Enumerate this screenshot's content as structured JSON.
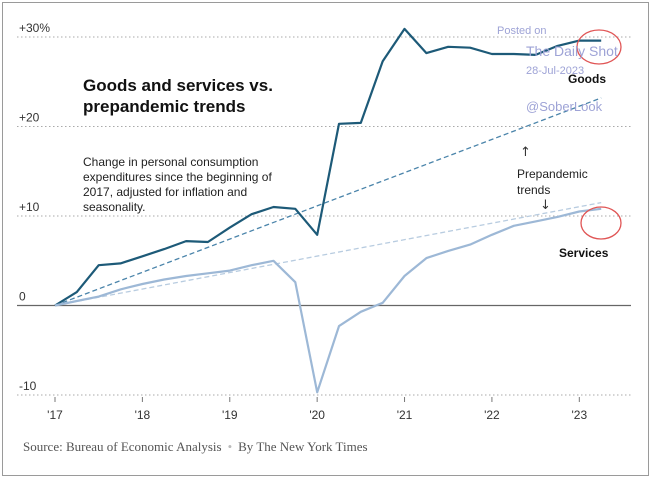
{
  "chart_data": {
    "type": "line",
    "title": "Goods and services vs. prepandemic trends",
    "subtitle": "Change in personal consumption expenditures since the beginning of 2017, adjusted for inflation and seasonality.",
    "xlabel": "",
    "ylabel": "",
    "xlim": [
      2017,
      2023.5
    ],
    "ylim": [
      -10,
      30
    ],
    "x_ticks": [
      {
        "value": 2017,
        "label": "'17"
      },
      {
        "value": 2018,
        "label": "'18"
      },
      {
        "value": 2019,
        "label": "'19"
      },
      {
        "value": 2020,
        "label": "'20"
      },
      {
        "value": 2021,
        "label": "'21"
      },
      {
        "value": 2022,
        "label": "'22"
      },
      {
        "value": 2023,
        "label": "'23"
      }
    ],
    "y_ticks": [
      {
        "value": 30,
        "label": "+30%"
      },
      {
        "value": 20,
        "label": "+20"
      },
      {
        "value": 10,
        "label": "+10"
      },
      {
        "value": 0,
        "label": "0"
      },
      {
        "value": -10,
        "label": "-10"
      }
    ],
    "series": [
      {
        "name": "Goods",
        "style": "solid",
        "color": "#1d5a78",
        "x": [
          2017.0,
          2017.25,
          2017.5,
          2017.75,
          2018.0,
          2018.25,
          2018.5,
          2018.75,
          2019.0,
          2019.25,
          2019.5,
          2019.75,
          2020.0,
          2020.25,
          2020.5,
          2020.75,
          2021.0,
          2021.25,
          2021.5,
          2021.75,
          2022.0,
          2022.25,
          2022.5,
          2022.75,
          2023.0,
          2023.25
        ],
        "values": [
          0,
          1.5,
          4.5,
          4.7,
          5.5,
          6.3,
          7.2,
          7.1,
          8.7,
          10.2,
          11.0,
          10.8,
          7.9,
          20.3,
          20.4,
          27.3,
          30.9,
          28.2,
          28.9,
          28.8,
          28.1,
          28.1,
          28.0,
          29.0,
          29.6,
          29.6
        ]
      },
      {
        "name": "Services",
        "style": "solid",
        "color": "#9db8d6",
        "x": [
          2017.0,
          2017.25,
          2017.5,
          2017.75,
          2018.0,
          2018.25,
          2018.5,
          2018.75,
          2019.0,
          2019.25,
          2019.5,
          2019.75,
          2020.0,
          2020.25,
          2020.5,
          2020.75,
          2021.0,
          2021.25,
          2021.5,
          2021.75,
          2022.0,
          2022.25,
          2022.5,
          2022.75,
          2023.0,
          2023.25
        ],
        "values": [
          0,
          0.5,
          1.0,
          1.8,
          2.4,
          2.9,
          3.3,
          3.6,
          3.9,
          4.5,
          5.0,
          2.6,
          -9.7,
          -2.3,
          -0.7,
          0.3,
          3.3,
          5.3,
          6.1,
          6.8,
          7.9,
          8.9,
          9.4,
          9.9,
          10.5,
          10.8
        ]
      },
      {
        "name": "Goods prepandemic trend",
        "style": "dashed",
        "color": "#4a84aa",
        "x": [
          2017.0,
          2023.25
        ],
        "values": [
          0,
          23.2
        ]
      },
      {
        "name": "Services prepandemic trend",
        "style": "dashed",
        "color": "#b8cce0",
        "x": [
          2017.0,
          2023.25
        ],
        "values": [
          0,
          11.5
        ]
      }
    ],
    "labels": {
      "goods": "Goods",
      "services": "Services",
      "trend": "Prepandemic trends"
    },
    "source": "Source: Bureau of Economic Analysis",
    "credit": "By The New York Times"
  },
  "watermark": {
    "posted_on": "Posted on",
    "site": "The Daily Shot",
    "date": "28-Jul-2023",
    "handle": "@SoberLook"
  },
  "colors": {
    "goods": "#1d5a78",
    "services": "#9db8d6",
    "goods_trend": "#4a84aa",
    "services_trend": "#b8cce0",
    "highlight": "#e05555"
  }
}
